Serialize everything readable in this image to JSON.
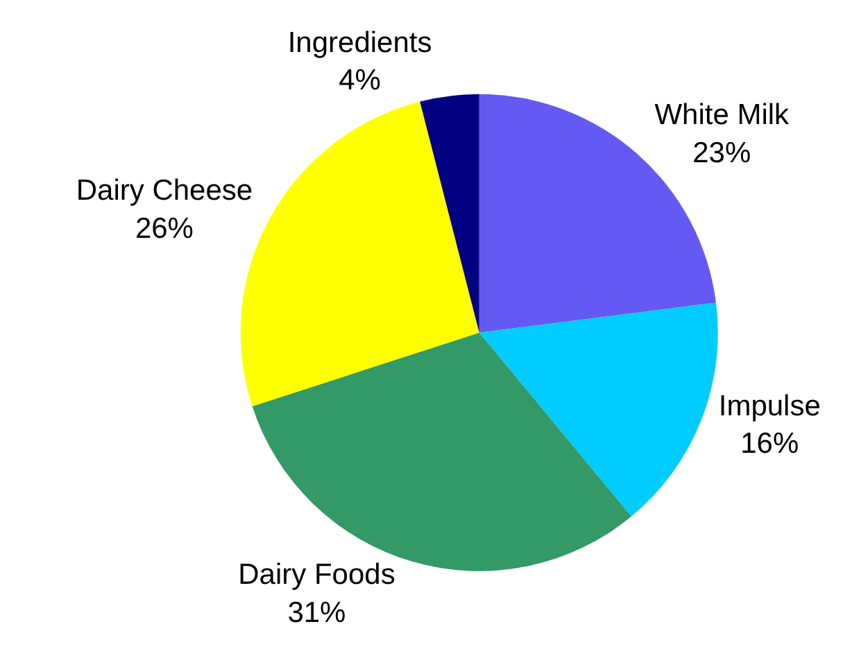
{
  "chart_data": {
    "type": "pie",
    "categories": [
      "White Milk",
      "Impulse",
      "Dairy Foods",
      "Dairy Cheese",
      "Ingredients"
    ],
    "values": [
      23,
      16,
      31,
      26,
      4
    ],
    "value_labels": [
      "23%",
      "16%",
      "31%",
      "26%",
      "4%"
    ],
    "colors": [
      "#6459f2",
      "#00ccff",
      "#339966",
      "#ffff00",
      "#000080"
    ],
    "legend": false
  }
}
